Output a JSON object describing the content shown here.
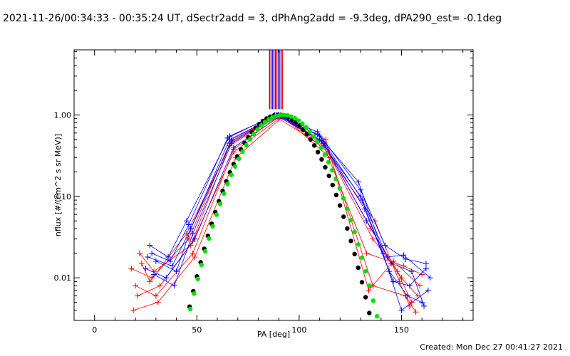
{
  "header": {
    "title": "2021-11-26/00:34:33 - 00:35:24 UT, dSectr2add = 3, dPhAng2add = -9.3deg, dPA290_est= -0.1deg"
  },
  "footer": {
    "created": "Created: Mon Dec 27 00:41:27 2021"
  },
  "chart_data": {
    "type": "scatter",
    "xlabel": "PA [deg]",
    "ylabel": "nflux [#/(cm^2 s sr MeV)]",
    "xlim": [
      -10,
      185
    ],
    "ylim": [
      0.003,
      6.3
    ],
    "yscale": "log",
    "x_ticks": [
      0,
      50,
      100,
      150
    ],
    "x_tick_labels": [
      "0",
      "50",
      "100",
      "150"
    ],
    "y_ticks": [
      0.01,
      0.1,
      1.0
    ],
    "y_tick_labels": [
      "0.01",
      "0.10",
      "1.00"
    ],
    "grid": false,
    "colors": {
      "red": "#ff0000",
      "blue": "#0000ff",
      "green": "#00e000",
      "black": "#000000"
    },
    "vertical_marker_lines_x": [
      85.5,
      86.2,
      86.9,
      87.6,
      88.3,
      89.0,
      89.7,
      90.4,
      91.1,
      91.8
    ],
    "series": [
      {
        "color": "red",
        "marker": "+",
        "points": [
          [
            18,
            0.013
          ],
          [
            28,
            0.01
          ],
          [
            46,
            0.03
          ],
          [
            66,
            0.45
          ],
          [
            90,
            1.0
          ],
          [
            112,
            0.45
          ],
          [
            135,
            0.04
          ],
          [
            150,
            0.01
          ],
          [
            158,
            0.006
          ]
        ]
      },
      {
        "color": "red",
        "marker": "+",
        "points": [
          [
            20,
            0.008
          ],
          [
            30,
            0.006
          ],
          [
            48,
            0.02
          ],
          [
            68,
            0.38
          ],
          [
            91,
            1.0
          ],
          [
            114,
            0.35
          ],
          [
            136,
            0.03
          ],
          [
            148,
            0.012
          ],
          [
            155,
            0.005
          ]
        ]
      },
      {
        "color": "red",
        "marker": "+",
        "points": [
          [
            22,
            0.02
          ],
          [
            29,
            0.012
          ],
          [
            47,
            0.025
          ],
          [
            67,
            0.5
          ],
          [
            90,
            1.0
          ],
          [
            113,
            0.5
          ],
          [
            134,
            0.007
          ],
          [
            146,
            0.016
          ],
          [
            159,
            0.008
          ]
        ]
      },
      {
        "color": "red",
        "marker": "+",
        "points": [
          [
            19,
            0.004
          ],
          [
            31,
            0.005
          ],
          [
            49,
            0.018
          ],
          [
            69,
            0.3
          ],
          [
            92,
            0.95
          ],
          [
            115,
            0.3
          ],
          [
            137,
            0.05
          ],
          [
            149,
            0.009
          ],
          [
            154,
            0.0045
          ]
        ]
      },
      {
        "color": "red",
        "marker": "+",
        "points": [
          [
            23,
            0.015
          ],
          [
            27,
            0.009
          ],
          [
            45,
            0.035
          ],
          [
            66,
            0.42
          ],
          [
            91,
            1.0
          ],
          [
            112,
            0.42
          ],
          [
            133,
            0.02
          ],
          [
            151,
            0.014
          ],
          [
            160,
            0.011
          ]
        ]
      },
      {
        "color": "red",
        "marker": "+",
        "points": [
          [
            21,
            0.006
          ],
          [
            32,
            0.008
          ],
          [
            48,
            0.028
          ],
          [
            68,
            0.35
          ],
          [
            90,
            0.9
          ],
          [
            114,
            0.38
          ],
          [
            136,
            0.008
          ],
          [
            152,
            0.006
          ],
          [
            157,
            0.0038
          ]
        ]
      },
      {
        "color": "blue",
        "marker": "+",
        "points": [
          [
            27,
            0.025
          ],
          [
            36,
            0.018
          ],
          [
            45,
            0.05
          ],
          [
            66,
            0.55
          ],
          [
            89,
            1.0
          ],
          [
            109,
            0.62
          ],
          [
            130,
            0.12
          ],
          [
            142,
            0.025
          ],
          [
            152,
            0.017
          ],
          [
            162,
            0.015
          ]
        ]
      },
      {
        "color": "blue",
        "marker": "+",
        "points": [
          [
            26,
            0.018
          ],
          [
            38,
            0.014
          ],
          [
            47,
            0.04
          ],
          [
            67,
            0.48
          ],
          [
            90,
            1.0
          ],
          [
            110,
            0.55
          ],
          [
            131,
            0.09
          ],
          [
            143,
            0.018
          ],
          [
            151,
            0.019
          ],
          [
            164,
            0.01
          ]
        ]
      },
      {
        "color": "blue",
        "marker": "+",
        "points": [
          [
            25,
            0.013
          ],
          [
            35,
            0.01
          ],
          [
            49,
            0.03
          ],
          [
            68,
            0.4
          ],
          [
            91,
            0.98
          ],
          [
            111,
            0.48
          ],
          [
            132,
            0.07
          ],
          [
            144,
            0.012
          ],
          [
            153,
            0.006
          ],
          [
            160,
            0.005
          ]
        ]
      },
      {
        "color": "blue",
        "marker": "+",
        "points": [
          [
            28,
            0.02
          ],
          [
            37,
            0.016
          ],
          [
            46,
            0.045
          ],
          [
            65,
            0.52
          ],
          [
            88,
            1.0
          ],
          [
            109,
            0.58
          ],
          [
            129,
            0.15
          ],
          [
            141,
            0.02
          ],
          [
            150,
            0.004
          ],
          [
            163,
            0.007
          ]
        ]
      },
      {
        "color": "blue",
        "marker": "+",
        "points": [
          [
            29,
            0.011
          ],
          [
            39,
            0.008
          ],
          [
            48,
            0.035
          ],
          [
            67,
            0.45
          ],
          [
            90,
            1.0
          ],
          [
            112,
            0.45
          ],
          [
            133,
            0.05
          ],
          [
            145,
            0.015
          ],
          [
            155,
            0.012
          ],
          [
            161,
            0.0045
          ]
        ]
      },
      {
        "color": "blue",
        "marker": "+",
        "points": [
          [
            30,
            0.016
          ],
          [
            40,
            0.012
          ],
          [
            47,
            0.04
          ],
          [
            66,
            0.5
          ],
          [
            89,
            0.97
          ],
          [
            110,
            0.5
          ],
          [
            130,
            0.1
          ],
          [
            146,
            0.009
          ],
          [
            154,
            0.008
          ],
          [
            162,
            0.013
          ]
        ]
      }
    ],
    "dotted_curves": [
      {
        "color": "black",
        "x_start": 37.5,
        "x_end": 145,
        "peak_x": 90,
        "peak_y": 1.0,
        "width": 18.7
      },
      {
        "color": "green",
        "x_start": 39.5,
        "x_end": 149,
        "peak_x": 92,
        "peak_y": 1.0,
        "width": 19.3
      }
    ]
  }
}
